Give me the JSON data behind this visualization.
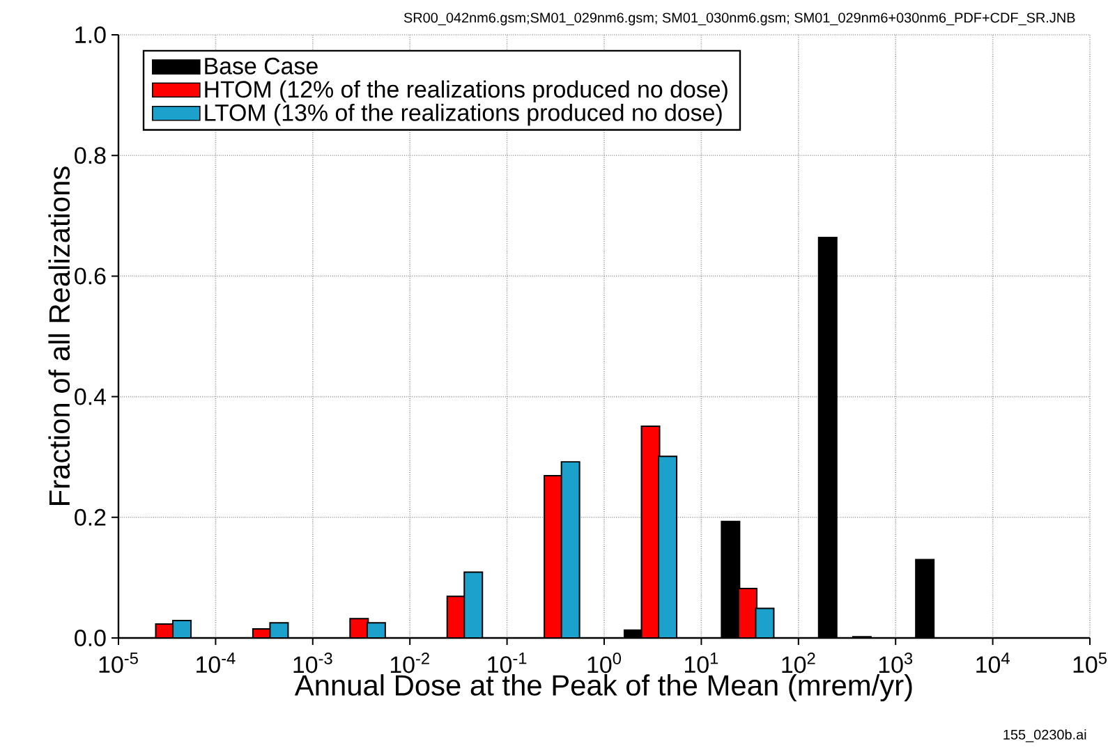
{
  "chart_data": {
    "type": "bar",
    "xlabel": "Annual Dose at the Peak of the Mean (mrem/yr)",
    "ylabel": "Fraction of all Realizations",
    "annotations": [
      "SR00_042nm6.gsm;SM01_029nm6.gsm; SM01_030nm6.gsm; SM01_029nm6+030nm6_PDF+CDF_SR.JNB",
      "155_0230b.ai"
    ],
    "series": [
      {
        "name": "Base  Case",
        "color": "#000000",
        "x": [
          2,
          20,
          200,
          2000
        ],
        "values": [
          0.013,
          0.193,
          0.664,
          0.13
        ]
      },
      {
        "name": "HTOM (12% of the realizations produced no dose)",
        "color": "#ff0000",
        "x": [
          3e-05,
          0.0003,
          0.003,
          0.03,
          0.3,
          3,
          30
        ],
        "values": [
          0.023,
          0.015,
          0.032,
          0.069,
          0.269,
          0.351,
          0.082
        ]
      },
      {
        "name": "LTOM (13% of the realizations produced no dose)",
        "color": "#1ba1cc",
        "x": [
          4.5e-05,
          0.00045,
          0.0045,
          0.045,
          0.45,
          4.5,
          45,
          450
        ],
        "values": [
          0.029,
          0.025,
          0.025,
          0.109,
          0.292,
          0.301,
          0.049,
          0.002
        ]
      }
    ],
    "log": "x",
    "xlim": [
      1e-05,
      100000
    ],
    "xticks": [
      {
        "value": 1e-05,
        "label": "10$^{-5}$"
      },
      {
        "value": 0.0001,
        "label": "10$^{-4}$"
      },
      {
        "value": 0.001,
        "label": "10$^{-3}$"
      },
      {
        "value": 0.01,
        "label": "10$^{-2}$"
      },
      {
        "value": 0.1,
        "label": "10$^{-1}$"
      },
      {
        "value": 1,
        "label": "10$^{0}$"
      },
      {
        "value": 10,
        "label": "10$^{1}$"
      },
      {
        "value": 100,
        "label": "10$^{2}$"
      },
      {
        "value": 1000,
        "label": "10$^{3}$"
      },
      {
        "value": 10000,
        "label": "10$^{4}$"
      },
      {
        "value": 100000,
        "label": "10$^{5}$"
      }
    ],
    "ylim": [
      0,
      1
    ],
    "yticks": [
      {
        "value": 0,
        "label": "0.0"
      },
      {
        "value": 0.2,
        "label": "0.2"
      },
      {
        "value": 0.4,
        "label": "0.4"
      },
      {
        "value": 0.6,
        "label": "0.6"
      },
      {
        "value": 0.8,
        "label": "0.8"
      },
      {
        "value": 1,
        "label": "1.0"
      }
    ],
    "grid": true,
    "legend": "top left"
  }
}
